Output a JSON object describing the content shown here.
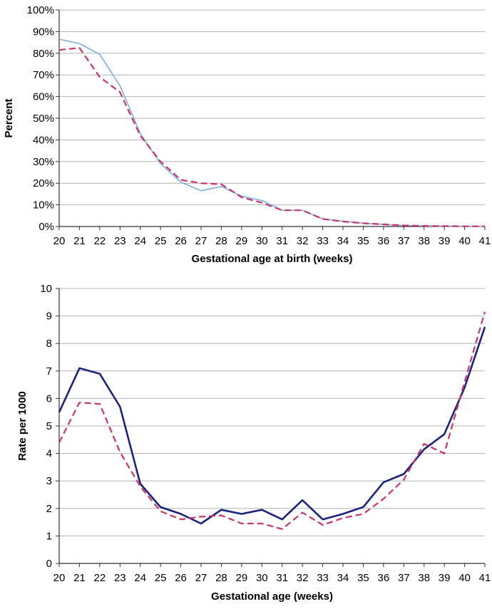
{
  "chart_data": [
    {
      "type": "line",
      "title": "",
      "xlabel": "Gestational age at birth (weeks)",
      "ylabel": "Percent",
      "x": [
        20,
        21,
        22,
        23,
        24,
        25,
        26,
        27,
        28,
        29,
        30,
        31,
        32,
        33,
        34,
        35,
        36,
        37,
        38,
        39,
        40,
        41
      ],
      "xlim": [
        20,
        41
      ],
      "ylim": [
        0,
        100
      ],
      "y_tick_values": [
        0,
        10,
        20,
        30,
        40,
        50,
        60,
        70,
        80,
        90,
        100
      ],
      "y_tick_labels": [
        "0%",
        "10%",
        "20%",
        "30%",
        "40%",
        "50%",
        "60%",
        "70%",
        "80%",
        "90%",
        "100%"
      ],
      "grid": "horizontal",
      "legend": "none",
      "series": [
        {
          "color": "#7aaee0",
          "style": "solid",
          "values": [
            86.5,
            84.5,
            79.5,
            65,
            43,
            29,
            20.5,
            16.5,
            18.5,
            14,
            12,
            7.5,
            7.5,
            3.5,
            2.5,
            1.5,
            1,
            0.5,
            0.3,
            0.2,
            0.1,
            0.1
          ]
        },
        {
          "color": "#cc3366",
          "style": "dashed",
          "values": [
            81.5,
            82.5,
            69,
            62,
            42,
            30,
            21.5,
            20,
            19.5,
            13.5,
            11,
            7.5,
            7.5,
            3.5,
            2.3,
            1.5,
            1,
            0.5,
            0.3,
            0.2,
            0.1,
            0.1
          ]
        }
      ]
    },
    {
      "type": "line",
      "title": "",
      "xlabel": "Gestational age (weeks)",
      "ylabel": "Rate per 1000",
      "x": [
        20,
        21,
        22,
        23,
        24,
        25,
        26,
        27,
        28,
        29,
        30,
        31,
        32,
        33,
        34,
        35,
        36,
        37,
        38,
        39,
        40,
        41
      ],
      "xlim": [
        20,
        41
      ],
      "ylim": [
        0,
        10
      ],
      "y_tick_values": [
        0,
        1,
        2,
        3,
        4,
        5,
        6,
        7,
        8,
        9,
        10
      ],
      "y_tick_labels": [
        "0",
        "1",
        "2",
        "3",
        "4",
        "5",
        "6",
        "7",
        "8",
        "9",
        "10"
      ],
      "grid": "horizontal",
      "legend": "none",
      "series": [
        {
          "color": "#1a237e",
          "style": "solid",
          "values": [
            5.5,
            7.1,
            6.9,
            5.7,
            2.9,
            2.05,
            1.8,
            1.45,
            1.95,
            1.8,
            1.95,
            1.6,
            2.3,
            1.6,
            1.8,
            2.05,
            2.95,
            3.25,
            4.15,
            4.7,
            6.4,
            8.6
          ]
        },
        {
          "color": "#cc3366",
          "style": "dashed",
          "values": [
            4.4,
            5.85,
            5.8,
            4.05,
            2.8,
            1.9,
            1.6,
            1.7,
            1.75,
            1.45,
            1.45,
            1.25,
            1.85,
            1.4,
            1.65,
            1.8,
            2.35,
            3.05,
            4.35,
            4.0,
            6.6,
            9.15
          ]
        }
      ]
    }
  ]
}
